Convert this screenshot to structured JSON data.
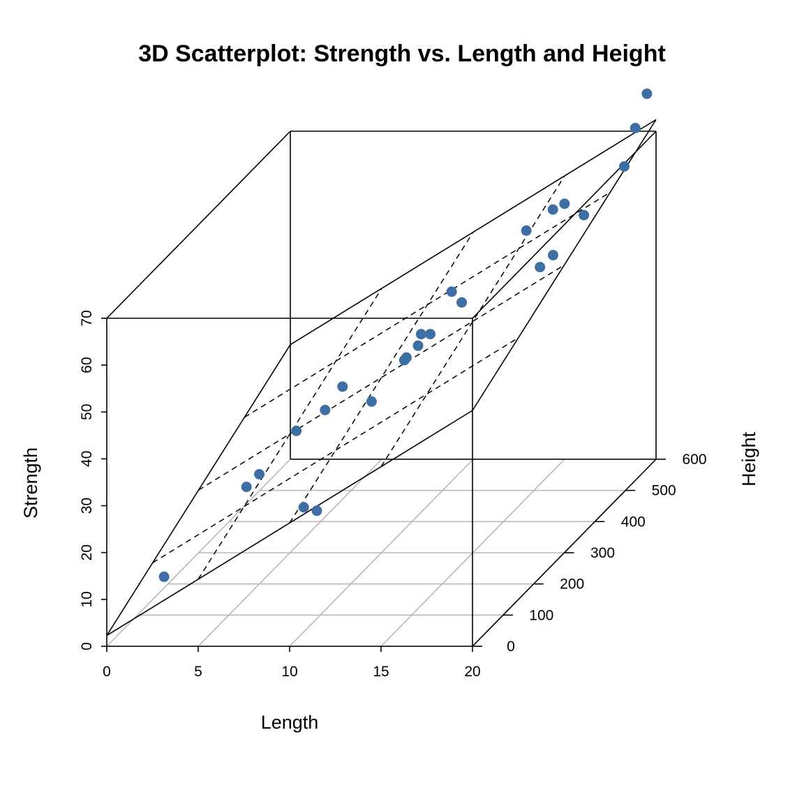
{
  "chart_data": {
    "type": "scatter",
    "title": "3D Scatterplot: Strength vs. Length and Height",
    "xlabel": "Length",
    "ylabel": "Height",
    "zlabel": "Strength",
    "xlim": [
      0,
      20
    ],
    "ylim": [
      0,
      600
    ],
    "zlim": [
      0,
      70
    ],
    "x_ticks": [
      "0",
      "5",
      "10",
      "15",
      "20"
    ],
    "y_ticks": [
      "0",
      "100",
      "200",
      "300",
      "400",
      "500",
      "600"
    ],
    "z_ticks": [
      "0",
      "10",
      "20",
      "30",
      "40",
      "50",
      "60",
      "70"
    ],
    "point_color": "#3d6fa5",
    "grid": true,
    "regression_plane": true,
    "points": [
      {
        "x": 2.8,
        "y": 20,
        "z": 13.5
      },
      {
        "x": 5.8,
        "y": 110,
        "z": 26.7
      },
      {
        "x": 6.0,
        "y": 140,
        "z": 27.4
      },
      {
        "x": 5.6,
        "y": 285,
        "z": 27.0
      },
      {
        "x": 6.0,
        "y": 355,
        "z": 26.8
      },
      {
        "x": 6.2,
        "y": 400,
        "z": 28.8
      },
      {
        "x": 9.6,
        "y": 70,
        "z": 25.0
      },
      {
        "x": 10.4,
        "y": 65,
        "z": 24.6
      },
      {
        "x": 10.8,
        "y": 220,
        "z": 37.6
      },
      {
        "x": 10.5,
        "y": 345,
        "z": 38.1
      },
      {
        "x": 10.7,
        "y": 340,
        "z": 39.0
      },
      {
        "x": 10.5,
        "y": 400,
        "z": 40.0
      },
      {
        "x": 11.0,
        "y": 360,
        "z": 40.2
      },
      {
        "x": 11.5,
        "y": 370,
        "z": 42.0
      },
      {
        "x": 12.3,
        "y": 425,
        "z": 45.1
      },
      {
        "x": 11.5,
        "y": 440,
        "z": 46.4
      },
      {
        "x": 15.5,
        "y": 445,
        "z": 59.1
      },
      {
        "x": 16.2,
        "y": 490,
        "z": 60.6
      },
      {
        "x": 16.5,
        "y": 510,
        "z": 60.5
      },
      {
        "x": 17.5,
        "y": 370,
        "z": 56.3
      },
      {
        "x": 17.8,
        "y": 395,
        "z": 57.2
      },
      {
        "x": 18.9,
        "y": 430,
        "z": 63.4
      },
      {
        "x": 19.6,
        "y": 520,
        "z": 67.8
      },
      {
        "x": 19.2,
        "y": 580,
        "z": 72.0
      },
      {
        "x": 19.5,
        "y": 600,
        "z": 78.0
      }
    ]
  }
}
